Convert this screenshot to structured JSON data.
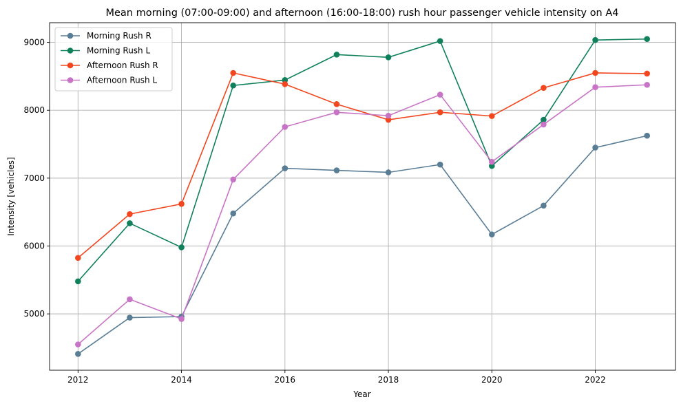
{
  "chart_data": {
    "type": "line",
    "title": "Mean morning (07:00-09:00) and afternoon (16:00-18:00) rush hour passenger vehicle intensity on A4",
    "xlabel": "Year",
    "ylabel": "Intensity [vehicles]",
    "x": [
      2012,
      2013,
      2014,
      2015,
      2016,
      2017,
      2018,
      2019,
      2020,
      2021,
      2022,
      2023
    ],
    "xlim": [
      2011.45,
      2023.55
    ],
    "ylim": [
      4170,
      9290
    ],
    "xticks": [
      2012,
      2014,
      2016,
      2018,
      2020,
      2022
    ],
    "yticks": [
      5000,
      6000,
      7000,
      8000,
      9000
    ],
    "xtick_labels": [
      "2012",
      "2014",
      "2016",
      "2018",
      "2020",
      "2022"
    ],
    "ytick_labels": [
      "5000",
      "6000",
      "7000",
      "8000",
      "9000"
    ],
    "grid": true,
    "legend_position": "upper-left",
    "series": [
      {
        "name": "Morning Rush R",
        "color": "#5a7d96",
        "values": [
          4410,
          4945,
          4960,
          6480,
          7145,
          7115,
          7085,
          7200,
          6170,
          6595,
          7450,
          7625
        ]
      },
      {
        "name": "Morning Rush L",
        "color": "#10805c",
        "values": [
          5480,
          6335,
          5980,
          8365,
          8445,
          8820,
          8780,
          9020,
          7180,
          7860,
          9035,
          9050
        ]
      },
      {
        "name": "Afternoon Rush R",
        "color": "#f2461f",
        "values": [
          5825,
          6470,
          6620,
          8550,
          8385,
          8090,
          7860,
          7970,
          7915,
          8330,
          8550,
          8540
        ]
      },
      {
        "name": "Afternoon Rush L",
        "color": "#c874c6",
        "values": [
          4550,
          5215,
          4925,
          6980,
          7755,
          7970,
          7920,
          8230,
          7240,
          7790,
          8340,
          8375
        ]
      }
    ]
  }
}
